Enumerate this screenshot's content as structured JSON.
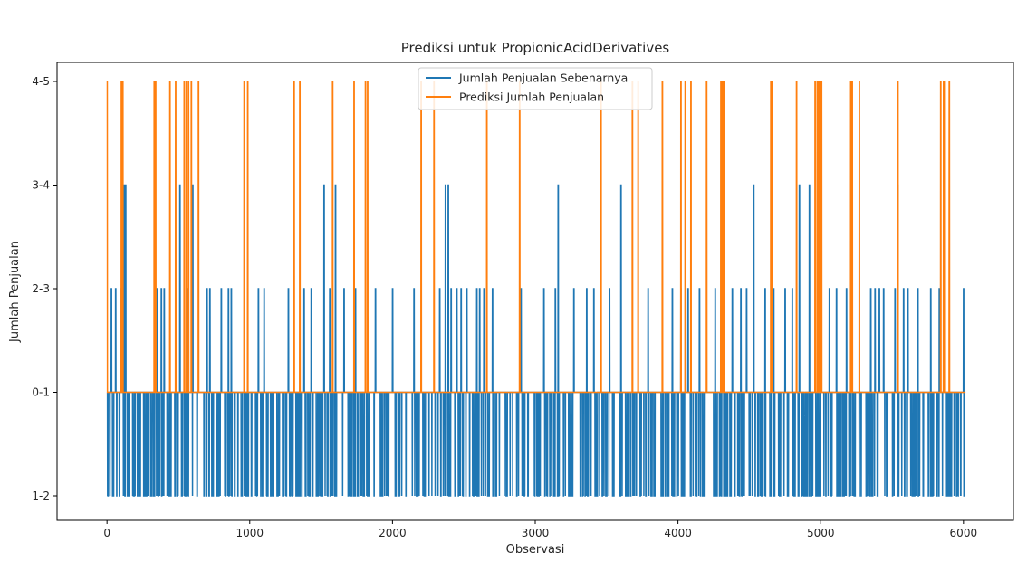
{
  "chart_data": {
    "type": "line",
    "title": "Prediksi untuk PropionicAcidDerivatives",
    "xlabel": "Observasi",
    "ylabel": "Jumlah Penjualan",
    "xlim": [
      -350,
      6350
    ],
    "x_ticks": [
      0,
      1000,
      2000,
      3000,
      4000,
      5000,
      6000
    ],
    "y_categories": [
      "1-2",
      "0-1",
      "2-3",
      "3-4",
      "4-5"
    ],
    "grid": false,
    "legend_position": "top-center",
    "n_points": 6015,
    "baseline_category": "0-1",
    "series": [
      {
        "name": "Jumlah Penjualan Sebenarnya",
        "color": "#1f77b4",
        "baseline": "0-1",
        "low_category": "1-2",
        "low_density": 0.26,
        "low_run_lengths": [
          1,
          1,
          1,
          1,
          2,
          2,
          3,
          4,
          6,
          9
        ],
        "spikes": [
          {
            "x": 30,
            "y": "2-3"
          },
          {
            "x": 60,
            "y": "2-3"
          },
          {
            "x": 100,
            "y": "2-3"
          },
          {
            "x": 120,
            "y": "3-4"
          },
          {
            "x": 130,
            "y": "3-4"
          },
          {
            "x": 350,
            "y": "2-3"
          },
          {
            "x": 380,
            "y": "2-3"
          },
          {
            "x": 400,
            "y": "2-3"
          },
          {
            "x": 510,
            "y": "3-4"
          },
          {
            "x": 560,
            "y": "2-3"
          },
          {
            "x": 600,
            "y": "3-4"
          },
          {
            "x": 700,
            "y": "2-3"
          },
          {
            "x": 720,
            "y": "2-3"
          },
          {
            "x": 800,
            "y": "2-3"
          },
          {
            "x": 850,
            "y": "2-3"
          },
          {
            "x": 870,
            "y": "2-3"
          },
          {
            "x": 1060,
            "y": "2-3"
          },
          {
            "x": 1100,
            "y": "2-3"
          },
          {
            "x": 1270,
            "y": "2-3"
          },
          {
            "x": 1380,
            "y": "2-3"
          },
          {
            "x": 1430,
            "y": "2-3"
          },
          {
            "x": 1520,
            "y": "3-4"
          },
          {
            "x": 1560,
            "y": "2-3"
          },
          {
            "x": 1600,
            "y": "3-4"
          },
          {
            "x": 1660,
            "y": "2-3"
          },
          {
            "x": 1740,
            "y": "2-3"
          },
          {
            "x": 1880,
            "y": "2-3"
          },
          {
            "x": 2000,
            "y": "2-3"
          },
          {
            "x": 2150,
            "y": "2-3"
          },
          {
            "x": 2330,
            "y": "2-3"
          },
          {
            "x": 2370,
            "y": "3-4"
          },
          {
            "x": 2390,
            "y": "3-4"
          },
          {
            "x": 2410,
            "y": "2-3"
          },
          {
            "x": 2450,
            "y": "2-3"
          },
          {
            "x": 2480,
            "y": "2-3"
          },
          {
            "x": 2520,
            "y": "2-3"
          },
          {
            "x": 2590,
            "y": "2-3"
          },
          {
            "x": 2610,
            "y": "2-3"
          },
          {
            "x": 2640,
            "y": "2-3"
          },
          {
            "x": 2700,
            "y": "2-3"
          },
          {
            "x": 2900,
            "y": "2-3"
          },
          {
            "x": 3060,
            "y": "2-3"
          },
          {
            "x": 3140,
            "y": "2-3"
          },
          {
            "x": 3160,
            "y": "3-4"
          },
          {
            "x": 3270,
            "y": "2-3"
          },
          {
            "x": 3360,
            "y": "2-3"
          },
          {
            "x": 3410,
            "y": "2-3"
          },
          {
            "x": 3520,
            "y": "2-3"
          },
          {
            "x": 3600,
            "y": "3-4"
          },
          {
            "x": 3790,
            "y": "2-3"
          },
          {
            "x": 3960,
            "y": "2-3"
          },
          {
            "x": 4020,
            "y": "2-3"
          },
          {
            "x": 4070,
            "y": "2-3"
          },
          {
            "x": 4150,
            "y": "2-3"
          },
          {
            "x": 4260,
            "y": "2-3"
          },
          {
            "x": 4380,
            "y": "2-3"
          },
          {
            "x": 4440,
            "y": "2-3"
          },
          {
            "x": 4480,
            "y": "2-3"
          },
          {
            "x": 4530,
            "y": "3-4"
          },
          {
            "x": 4610,
            "y": "2-3"
          },
          {
            "x": 4670,
            "y": "2-3"
          },
          {
            "x": 4750,
            "y": "2-3"
          },
          {
            "x": 4800,
            "y": "2-3"
          },
          {
            "x": 4850,
            "y": "3-4"
          },
          {
            "x": 4920,
            "y": "3-4"
          },
          {
            "x": 5060,
            "y": "2-3"
          },
          {
            "x": 5110,
            "y": "2-3"
          },
          {
            "x": 5180,
            "y": "2-3"
          },
          {
            "x": 5350,
            "y": "2-3"
          },
          {
            "x": 5380,
            "y": "2-3"
          },
          {
            "x": 5410,
            "y": "2-3"
          },
          {
            "x": 5440,
            "y": "2-3"
          },
          {
            "x": 5520,
            "y": "2-3"
          },
          {
            "x": 5540,
            "y": "3-4"
          },
          {
            "x": 5580,
            "y": "2-3"
          },
          {
            "x": 5610,
            "y": "2-3"
          },
          {
            "x": 5680,
            "y": "2-3"
          },
          {
            "x": 5770,
            "y": "2-3"
          },
          {
            "x": 5830,
            "y": "2-3"
          },
          {
            "x": 6000,
            "y": "2-3"
          }
        ]
      },
      {
        "name": "Prediksi Jumlah Penjualan",
        "color": "#ff7f0e",
        "baseline": "0-1",
        "spikes": [
          {
            "x": 0,
            "y": "4-5"
          },
          {
            "x": 100,
            "y": "4-5"
          },
          {
            "x": 110,
            "y": "4-5"
          },
          {
            "x": 330,
            "y": "4-5"
          },
          {
            "x": 340,
            "y": "4-5"
          },
          {
            "x": 440,
            "y": "4-5"
          },
          {
            "x": 480,
            "y": "4-5"
          },
          {
            "x": 540,
            "y": "4-5"
          },
          {
            "x": 555,
            "y": "4-5"
          },
          {
            "x": 570,
            "y": "4-5"
          },
          {
            "x": 590,
            "y": "4-5"
          },
          {
            "x": 640,
            "y": "4-5"
          },
          {
            "x": 960,
            "y": "4-5"
          },
          {
            "x": 985,
            "y": "4-5"
          },
          {
            "x": 1310,
            "y": "4-5"
          },
          {
            "x": 1350,
            "y": "4-5"
          },
          {
            "x": 1580,
            "y": "4-5"
          },
          {
            "x": 1730,
            "y": "4-5"
          },
          {
            "x": 1810,
            "y": "4-5"
          },
          {
            "x": 1825,
            "y": "4-5"
          },
          {
            "x": 2200,
            "y": "4-5"
          },
          {
            "x": 2290,
            "y": "4-5"
          },
          {
            "x": 2660,
            "y": "4-5"
          },
          {
            "x": 2890,
            "y": "4-5"
          },
          {
            "x": 3460,
            "y": "4-5"
          },
          {
            "x": 3680,
            "y": "4-5"
          },
          {
            "x": 3720,
            "y": "4-5"
          },
          {
            "x": 3890,
            "y": "4-5"
          },
          {
            "x": 4020,
            "y": "4-5"
          },
          {
            "x": 4050,
            "y": "4-5"
          },
          {
            "x": 4090,
            "y": "4-5"
          },
          {
            "x": 4200,
            "y": "4-5"
          },
          {
            "x": 4300,
            "y": "4-5"
          },
          {
            "x": 4310,
            "y": "4-5"
          },
          {
            "x": 4320,
            "y": "4-5"
          },
          {
            "x": 4650,
            "y": "4-5"
          },
          {
            "x": 4660,
            "y": "4-5"
          },
          {
            "x": 4830,
            "y": "4-5"
          },
          {
            "x": 4960,
            "y": "4-5"
          },
          {
            "x": 4975,
            "y": "4-5"
          },
          {
            "x": 4985,
            "y": "4-5"
          },
          {
            "x": 4995,
            "y": "4-5"
          },
          {
            "x": 5005,
            "y": "4-5"
          },
          {
            "x": 5210,
            "y": "4-5"
          },
          {
            "x": 5220,
            "y": "4-5"
          },
          {
            "x": 5270,
            "y": "4-5"
          },
          {
            "x": 5540,
            "y": "4-5"
          },
          {
            "x": 5840,
            "y": "4-5"
          },
          {
            "x": 5860,
            "y": "4-5"
          },
          {
            "x": 5870,
            "y": "4-5"
          },
          {
            "x": 5900,
            "y": "4-5"
          }
        ]
      }
    ]
  }
}
